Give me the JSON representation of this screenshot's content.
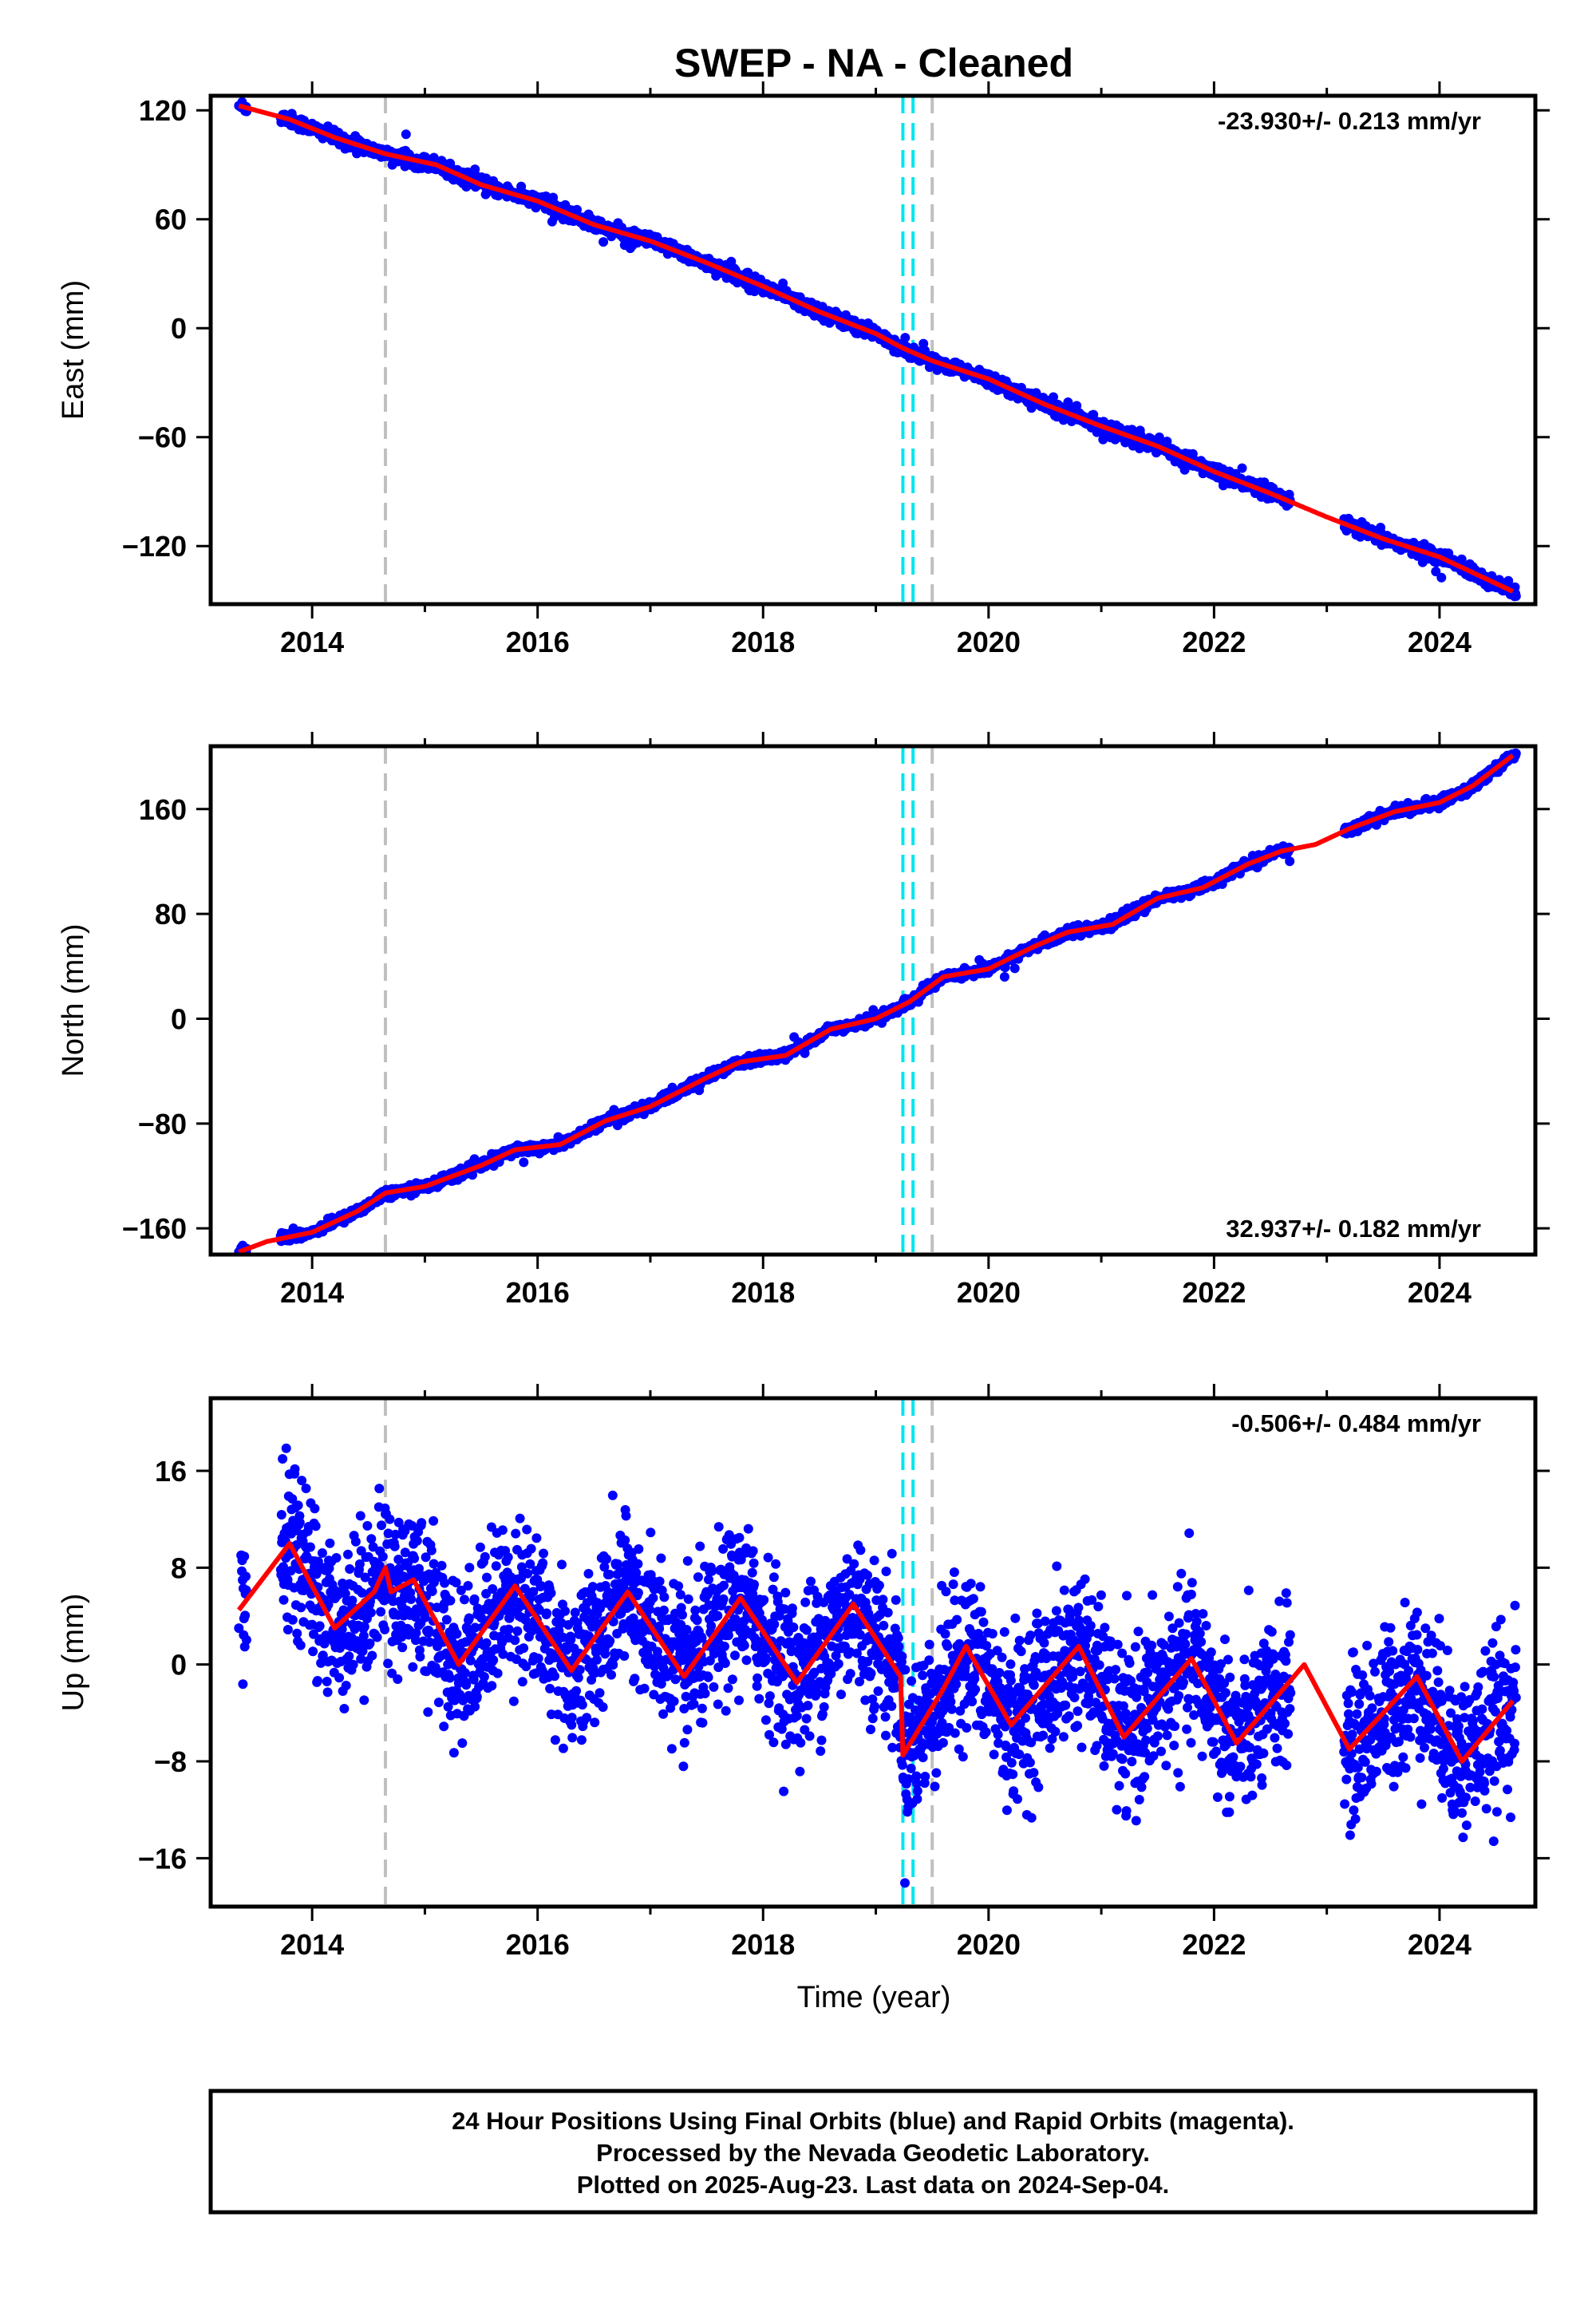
{
  "title": "SWEP  - NA - Cleaned",
  "colors": {
    "observations": "#0000ff",
    "model": "#ff0000",
    "offset_cyan": "#00e5ee",
    "offset_gray": "#c0c0c0"
  },
  "chart_data": [
    {
      "type": "scatter",
      "component": "East",
      "ylabel": "East (mm)",
      "xlabel": "",
      "xlim": [
        2013.1,
        2024.85
      ],
      "ylim": [
        -152,
        128
      ],
      "yticks": [
        -120,
        -60,
        0,
        60,
        120
      ],
      "xticks": [
        2014,
        2016,
        2018,
        2020,
        2022,
        2024
      ],
      "rate_label": "-23.930+/- 0.213 mm/yr",
      "rate_position": "top-right",
      "offset_lines": {
        "gray": [
          2014.65,
          2019.5
        ],
        "cyan": [
          2019.24,
          2019.33
        ]
      },
      "model_points": [
        [
          2013.35,
          122.5
        ],
        [
          2013.8,
          115
        ],
        [
          2014.2,
          105
        ],
        [
          2014.65,
          96
        ],
        [
          2015.1,
          90
        ],
        [
          2015.5,
          79
        ],
        [
          2016.0,
          70
        ],
        [
          2016.5,
          57
        ],
        [
          2017.0,
          48
        ],
        [
          2017.5,
          36
        ],
        [
          2018.0,
          23
        ],
        [
          2018.5,
          9
        ],
        [
          2019.0,
          -3
        ],
        [
          2019.24,
          -11
        ],
        [
          2019.5,
          -18
        ],
        [
          2020.0,
          -28
        ],
        [
          2020.5,
          -42
        ],
        [
          2021.0,
          -54
        ],
        [
          2021.5,
          -65
        ],
        [
          2022.0,
          -79
        ],
        [
          2022.5,
          -91
        ],
        [
          2023.0,
          -104
        ],
        [
          2023.5,
          -116
        ],
        [
          2024.0,
          -126
        ],
        [
          2024.65,
          -145
        ]
      ],
      "series": [
        {
          "values_note": "",
          "name": ""
        }
      ]
    },
    {
      "type": "scatter",
      "component": "North",
      "ylabel": "North (mm)",
      "xlabel": "",
      "xlim": [
        2013.1,
        2024.85
      ],
      "ylim": [
        -180,
        208
      ],
      "yticks": [
        -160,
        -80,
        0,
        80,
        160
      ],
      "xticks": [
        2014,
        2016,
        2018,
        2020,
        2022,
        2024
      ],
      "rate_label": "32.937+/- 0.182 mm/yr",
      "rate_position": "bottom-right",
      "offset_lines": {
        "gray": [
          2014.65,
          2019.5
        ],
        "cyan": [
          2019.24,
          2019.33
        ]
      },
      "model_points": [
        [
          2013.35,
          -178
        ],
        [
          2013.6,
          -170
        ],
        [
          2014.0,
          -163
        ],
        [
          2014.4,
          -147
        ],
        [
          2014.65,
          -133
        ],
        [
          2015.0,
          -128
        ],
        [
          2015.5,
          -112
        ],
        [
          2015.8,
          -100
        ],
        [
          2016.2,
          -96
        ],
        [
          2016.6,
          -78
        ],
        [
          2017.0,
          -67
        ],
        [
          2017.5,
          -45
        ],
        [
          2017.8,
          -33
        ],
        [
          2018.2,
          -28
        ],
        [
          2018.6,
          -8
        ],
        [
          2019.0,
          0
        ],
        [
          2019.3,
          13
        ],
        [
          2019.6,
          32
        ],
        [
          2020.0,
          38
        ],
        [
          2020.4,
          55
        ],
        [
          2020.7,
          66
        ],
        [
          2021.1,
          72
        ],
        [
          2021.5,
          92
        ],
        [
          2021.9,
          100
        ],
        [
          2022.3,
          118
        ],
        [
          2022.6,
          128
        ],
        [
          2022.9,
          133
        ],
        [
          2023.2,
          145
        ],
        [
          2023.6,
          158
        ],
        [
          2024.0,
          165
        ],
        [
          2024.3,
          178
        ],
        [
          2024.65,
          201
        ]
      ]
    },
    {
      "type": "scatter",
      "component": "Up",
      "ylabel": "Up (mm)",
      "xlabel": "Time (year)",
      "xlim": [
        2013.1,
        2024.85
      ],
      "ylim": [
        -20,
        22
      ],
      "yticks": [
        -16,
        -8,
        0,
        8,
        16
      ],
      "xticks": [
        2014,
        2016,
        2018,
        2020,
        2022,
        2024
      ],
      "rate_label": "-0.506+/- 0.484 mm/yr",
      "rate_position": "top-right",
      "offset_lines": {
        "gray": [
          2014.65,
          2019.5
        ],
        "cyan": [
          2019.24,
          2019.33
        ]
      },
      "model_points": [
        [
          2013.35,
          4.5
        ],
        [
          2013.8,
          10
        ],
        [
          2014.2,
          3
        ],
        [
          2014.55,
          6
        ],
        [
          2014.65,
          8
        ],
        [
          2014.7,
          6
        ],
        [
          2014.9,
          7
        ],
        [
          2015.3,
          0
        ],
        [
          2015.8,
          6.5
        ],
        [
          2016.3,
          -0.5
        ],
        [
          2016.8,
          6
        ],
        [
          2017.3,
          -1
        ],
        [
          2017.8,
          5.5
        ],
        [
          2018.3,
          -1.5
        ],
        [
          2018.8,
          5
        ],
        [
          2019.22,
          -1
        ],
        [
          2019.24,
          -7.5
        ],
        [
          2019.6,
          -2
        ],
        [
          2019.8,
          1.5
        ],
        [
          2020.2,
          -5
        ],
        [
          2020.8,
          1.5
        ],
        [
          2021.2,
          -6
        ],
        [
          2021.8,
          0.5
        ],
        [
          2022.2,
          -6.5
        ],
        [
          2022.8,
          0
        ],
        [
          2023.2,
          -7
        ],
        [
          2023.8,
          -1
        ],
        [
          2024.2,
          -8
        ],
        [
          2024.65,
          -3
        ]
      ]
    }
  ],
  "footer": {
    "line1": "24 Hour Positions Using Final Orbits (blue) and Rapid Orbits (magenta).",
    "line2": "Processed by the Nevada Geodetic Laboratory.",
    "line3": "Plotted on 2025-Aug-23. Last data on 2024-Sep-04."
  }
}
